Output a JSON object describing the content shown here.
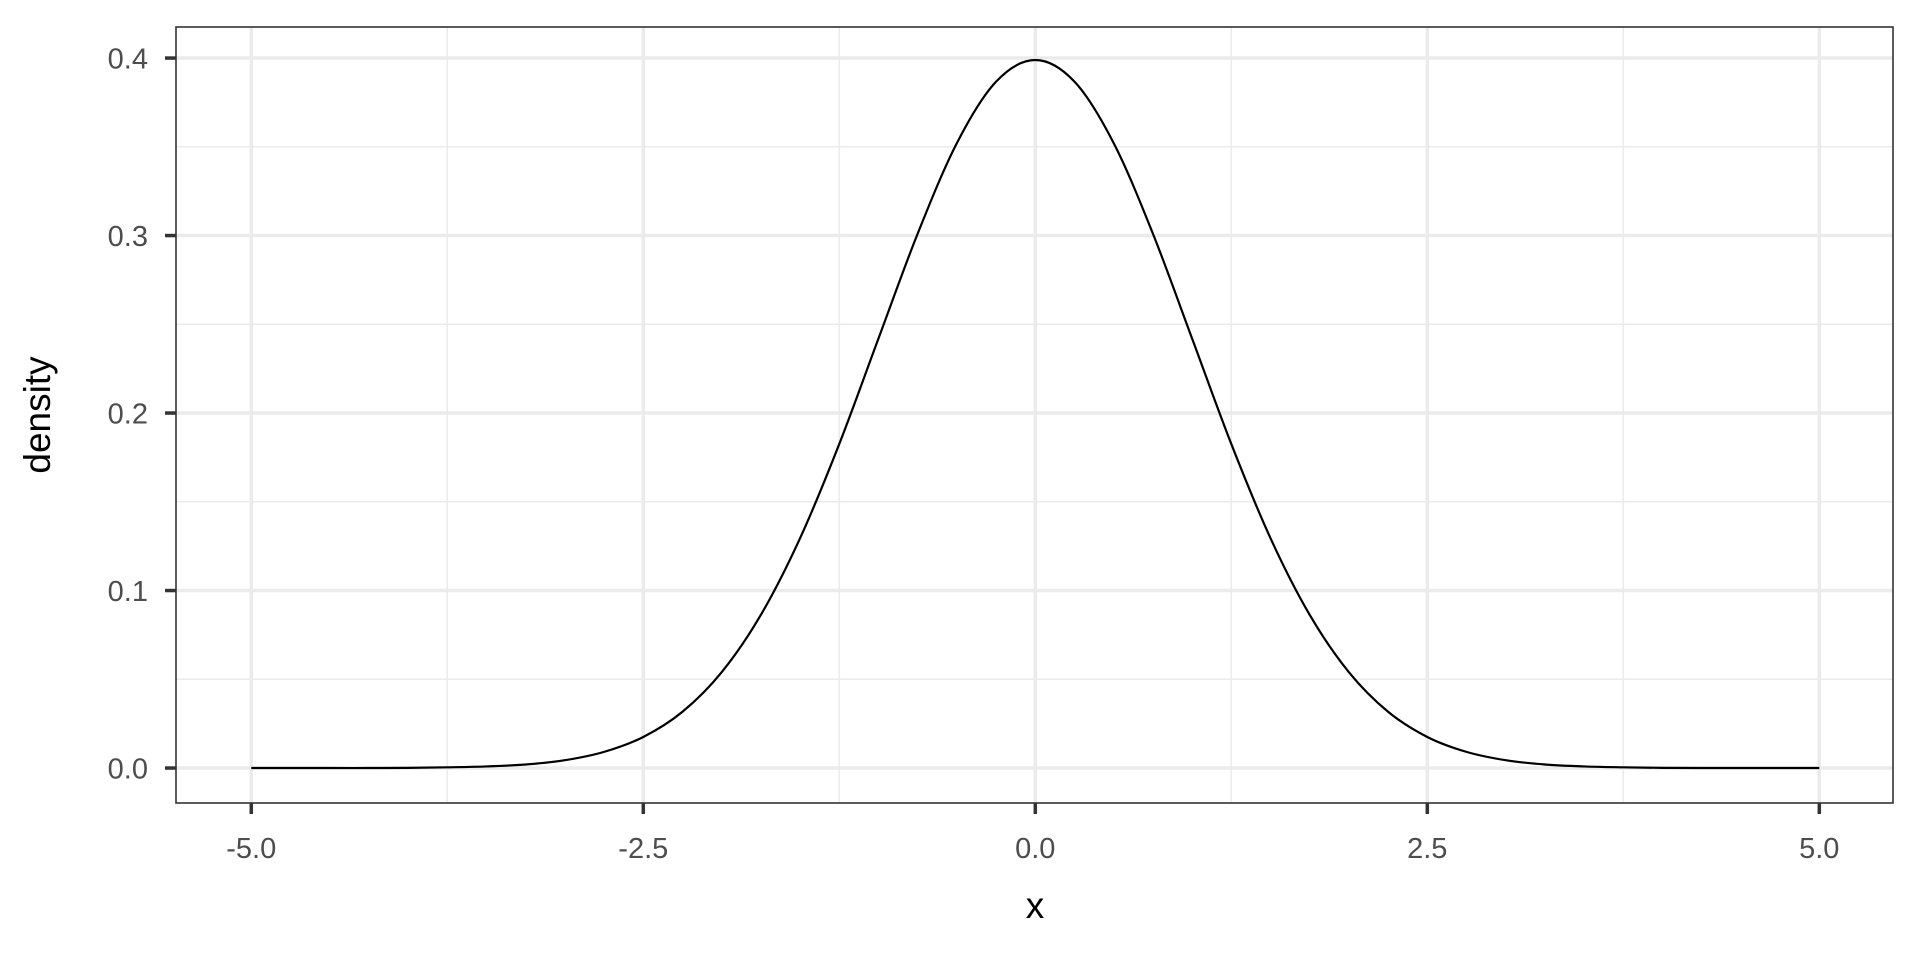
{
  "chart_data": {
    "type": "line",
    "title": "",
    "xlabel": "x",
    "ylabel": "density",
    "xlim": [
      -5.48,
      5.47
    ],
    "ylim": [
      -0.0197,
      0.4175
    ],
    "grid": true,
    "x_ticks": [
      -5.0,
      -2.5,
      0.0,
      2.5,
      5.0
    ],
    "x_tick_labels": [
      "-5.0",
      "-2.5",
      "0.0",
      "2.5",
      "5.0"
    ],
    "x_minor_ticks": [
      -3.75,
      -1.25,
      1.25,
      3.75
    ],
    "y_ticks": [
      0.0,
      0.1,
      0.2,
      0.3,
      0.4
    ],
    "y_tick_labels": [
      "0.0",
      "0.1",
      "0.2",
      "0.3",
      "0.4"
    ],
    "y_minor_ticks": [
      0.05,
      0.15,
      0.25,
      0.35
    ],
    "colors": {
      "line": "#000000",
      "grid": "#ebebeb",
      "panel_border": "#333333",
      "tick_label": "#4d4d4d"
    },
    "series": [
      {
        "x": [
          -5,
          -4.75,
          -4.5,
          -4.25,
          -4,
          -3.75,
          -3.5,
          -3.25,
          -3,
          -2.75,
          -2.5,
          -2.25,
          -2,
          -1.75,
          -1.5,
          -1.25,
          -1,
          -0.75,
          -0.5,
          -0.25,
          0,
          0.25,
          0.5,
          0.75,
          1,
          1.25,
          1.5,
          1.75,
          2,
          2.25,
          2.5,
          2.75,
          3,
          3.25,
          3.5,
          3.75,
          4,
          4.25,
          4.5,
          4.75,
          5
        ],
        "y": [
          0.0,
          0.0,
          0.0,
          0.0,
          0.0001,
          0.0004,
          0.0009,
          0.002,
          0.0044,
          0.0091,
          0.0175,
          0.0317,
          0.054,
          0.0863,
          0.1295,
          0.1826,
          0.242,
          0.3011,
          0.3521,
          0.3867,
          0.3989,
          0.3867,
          0.3521,
          0.3011,
          0.242,
          0.1826,
          0.1295,
          0.0863,
          0.054,
          0.0317,
          0.0175,
          0.0091,
          0.0044,
          0.002,
          0.0009,
          0.0004,
          0.0001,
          0.0,
          0.0,
          0.0,
          0.0
        ]
      }
    ]
  }
}
